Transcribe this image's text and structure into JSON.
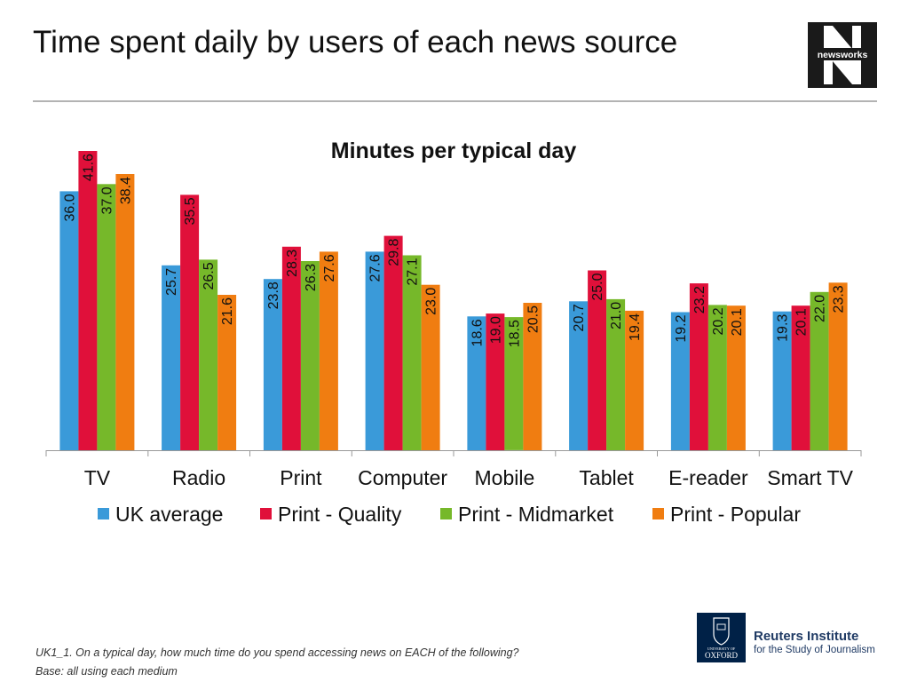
{
  "slide": {
    "title": "Time spent daily by users of each news source",
    "logo_text": "newsworks",
    "footnote_line1": "UK1_1. On a typical day, how much time do you spend accessing news on EACH of the following?",
    "footnote_line2": "Base: all using each medium",
    "oxford_logo_text_top": "UNIVERSITY OF",
    "oxford_logo_text_bottom": "OXFORD",
    "institute_name": "Reuters Institute",
    "institute_sub": "for the Study of Journalism"
  },
  "colors": {
    "logo_bg": "#1a1a1a",
    "logo_accent": "#e8002d",
    "oxford_blue": "#002147",
    "reuters_blue": "#1f3a64"
  },
  "chart_data": {
    "type": "bar",
    "title": "Minutes per typical day",
    "xlabel": "",
    "ylabel": "",
    "categories": [
      "TV",
      "Radio",
      "Print",
      "Computer",
      "Mobile",
      "Tablet",
      "E-reader",
      "Smart TV"
    ],
    "series": [
      {
        "name": "UK average",
        "color": "#3a9ad9",
        "values": [
          36.0,
          25.7,
          23.8,
          27.6,
          18.6,
          20.7,
          19.2,
          19.3
        ]
      },
      {
        "name": "Print - Quality",
        "color": "#e0103a",
        "values": [
          41.6,
          35.5,
          28.3,
          29.8,
          19.0,
          25.0,
          23.2,
          20.1
        ]
      },
      {
        "name": "Print - Midmarket",
        "color": "#76b82a",
        "values": [
          37.0,
          26.5,
          26.3,
          27.1,
          18.5,
          21.0,
          20.2,
          22.0
        ]
      },
      {
        "name": "Print - Popular",
        "color": "#f07d11",
        "values": [
          38.4,
          21.6,
          27.6,
          23.0,
          20.5,
          19.4,
          20.1,
          23.3
        ]
      }
    ],
    "ylim": [
      0,
      45
    ],
    "grid": false,
    "legend": "bottom",
    "data_labels": "inside-top-rotated"
  }
}
